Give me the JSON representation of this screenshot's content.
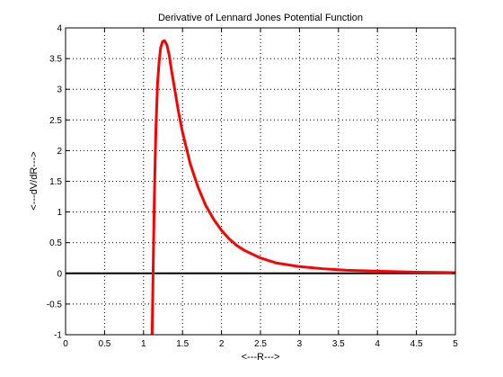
{
  "chart_data": {
    "type": "line",
    "title": "Derivative of Lennard Jones Potential Function",
    "xlabel": "<---R--->",
    "ylabel": "<---dV/dR--->",
    "xlim": [
      0,
      5
    ],
    "ylim": [
      -1,
      4
    ],
    "xticks": [
      0,
      0.5,
      1,
      1.5,
      2,
      2.5,
      3,
      3.5,
      4,
      4.5,
      5
    ],
    "yticks": [
      -1,
      -0.5,
      0,
      0.5,
      1,
      1.5,
      2,
      2.5,
      3,
      3.5,
      4
    ],
    "xtick_labels": [
      "0",
      "0.5",
      "1",
      "1.5",
      "2",
      "2.5",
      "3",
      "3.5",
      "4",
      "4.5",
      "5"
    ],
    "ytick_labels": [
      "-1",
      "-0.5",
      "0",
      "0.5",
      "1",
      "1.5",
      "2",
      "2.5",
      "3",
      "3.5",
      "4"
    ],
    "grid": true,
    "grid_style": "dotted",
    "series": [
      {
        "color": "#ff0000",
        "x": [
          1.11,
          1.12,
          1.13,
          1.14,
          1.15,
          1.16,
          1.18,
          1.2,
          1.22,
          1.245,
          1.27,
          1.3,
          1.33,
          1.36,
          1.4,
          1.45,
          1.5,
          1.6,
          1.7,
          1.8,
          1.9,
          2.0,
          2.1,
          2.2,
          2.3,
          2.5,
          2.7,
          3.0,
          3.3,
          3.6,
          4.0,
          4.5,
          5.0
        ],
        "y": [
          -1.0,
          -0.2,
          0.6,
          1.3,
          1.9,
          2.4,
          3.1,
          3.45,
          3.68,
          3.78,
          3.79,
          3.72,
          3.55,
          3.3,
          3.0,
          2.62,
          2.3,
          1.78,
          1.4,
          1.1,
          0.88,
          0.7,
          0.56,
          0.45,
          0.37,
          0.25,
          0.17,
          0.11,
          0.075,
          0.05,
          0.035,
          0.02,
          0.012
        ]
      },
      {
        "color": "#000000",
        "x": [
          0,
          5
        ],
        "y": [
          0,
          0
        ]
      }
    ]
  }
}
